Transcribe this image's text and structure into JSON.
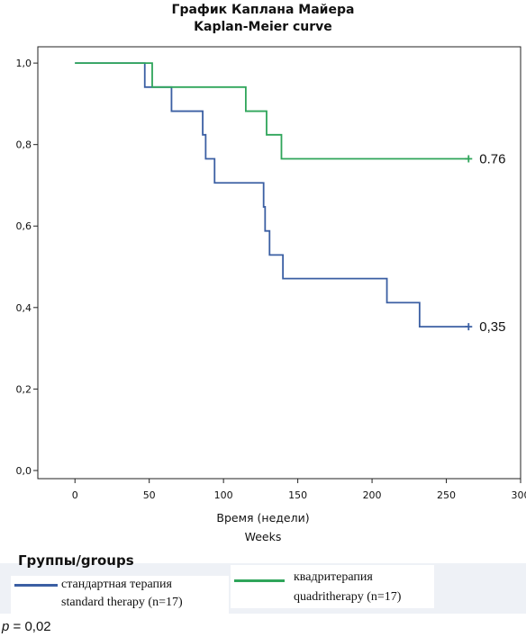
{
  "chart_data": {
    "type": "line",
    "title": "График  Каплана  Майера",
    "subtitle": "Kaplan-Meier curve",
    "xlabel": "Время (недели)",
    "xlabel_en": "Weeks",
    "xlim": [
      -25,
      300
    ],
    "ylim": [
      -0.02,
      1.04
    ],
    "x_ticks": [
      0,
      50,
      100,
      150,
      200,
      250,
      300
    ],
    "x_tick_labels": [
      "0",
      "50",
      "100",
      "150",
      "200",
      "250",
      "300"
    ],
    "y_ticks": [
      0,
      0.2,
      0.4,
      0.6,
      0.8,
      1.0
    ],
    "y_tick_labels": [
      "0,0",
      "0,2",
      "0,4",
      "0,6",
      "0,8",
      "1,0"
    ],
    "grid": false,
    "step": true,
    "series": [
      {
        "name": "стандартная терапия standard therapy (n=17)",
        "color": "#3b5fa3",
        "x": [
          0,
          47,
          65,
          86,
          88,
          94,
          127,
          128,
          131,
          140,
          210,
          232,
          265
        ],
        "y": [
          1.0,
          0.941,
          0.882,
          0.824,
          0.765,
          0.706,
          0.647,
          0.588,
          0.529,
          0.471,
          0.412,
          0.353,
          0.353
        ],
        "end_label": "0,35",
        "censored_at": 265
      },
      {
        "name": "квадритерапия quadritherapy (n=17)",
        "color": "#2fa55a",
        "x": [
          0,
          52,
          115,
          129,
          139,
          265
        ],
        "y": [
          1.0,
          0.941,
          0.882,
          0.824,
          0.765,
          0.765
        ],
        "end_label": "0.76",
        "censored_at": 265
      }
    ]
  },
  "legend": {
    "title": "Группы/groups",
    "standard_line1": "стандартная терапия",
    "standard_line2": "standard therapy (n=17)",
    "quad_line1": "квадритерапия",
    "quad_line2": "quadritherapy (n=17)"
  },
  "p_value": {
    "label": "p",
    "text": " = 0,02"
  }
}
